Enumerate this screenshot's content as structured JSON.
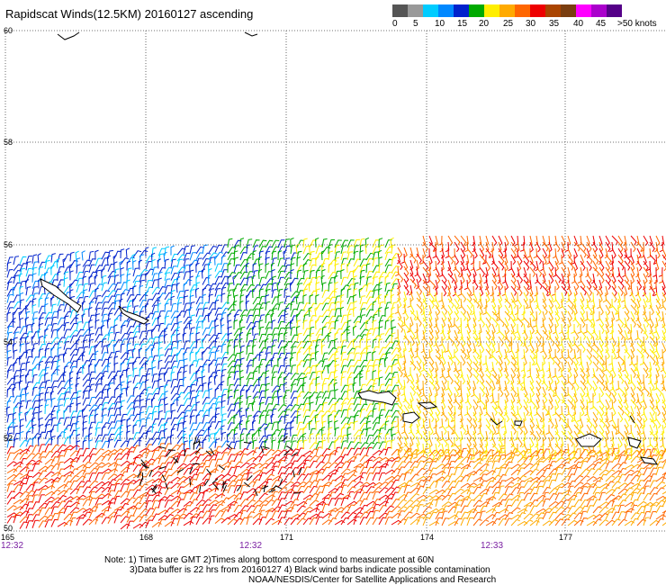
{
  "title": "Rapidscat Winds(12.5KM) 20160127 ascending",
  "legend": {
    "labels": [
      "0",
      "5",
      "10",
      "15",
      "20",
      "25",
      "30",
      "35",
      "40",
      "45",
      ">50 knots"
    ],
    "colors": [
      "#555555",
      "#999999",
      "#00ccff",
      "#0088ff",
      "#0022cc",
      "#00aa00",
      "#ffee00",
      "#ffaa00",
      "#ff6600",
      "#ee0000",
      "#aa4400",
      "#7a3e10",
      "#ff00ff",
      "#aa00cc",
      "#550088"
    ]
  },
  "map": {
    "lat_labels": [
      "60",
      "58",
      "56",
      "54",
      "52",
      "50"
    ],
    "lon_labels": [
      "165",
      "168",
      "171",
      "174",
      "177"
    ],
    "times": [
      "12:32",
      "12:32",
      "12:33"
    ]
  },
  "notes": {
    "line1": "Note: 1) Times are GMT 2)Times along bottom correspond to measurement at 60N",
    "line2": "3)Data buffer is 22 hrs from 20160127 4) Black wind barbs indicate possible contamination",
    "line3": "NOAA/NESDIS/Center for Satellite Applications and Research"
  }
}
